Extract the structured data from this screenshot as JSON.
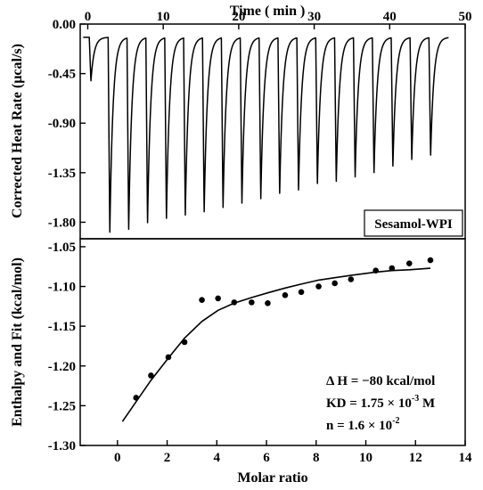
{
  "chart_data": [
    {
      "type": "line",
      "name": "raw-thermogram",
      "xlabel": "Time ( min )",
      "ylabel": "Corrected Heat Rate (µcal/s)",
      "xlim": [
        -1,
        50
      ],
      "ylim": [
        -1.95,
        0.0
      ],
      "x_ticks": [
        0,
        10,
        20,
        30,
        40,
        50
      ],
      "x_tick_labels": [
        "0",
        "10",
        "20",
        "30",
        "40",
        "50"
      ],
      "y_ticks": [
        0.0,
        -0.45,
        -0.9,
        -1.35,
        -1.8
      ],
      "y_tick_labels": [
        "0.00",
        "-0.45",
        "-0.90",
        "-1.35",
        "-1.80"
      ],
      "baseline": -0.12,
      "legend_label": "Sesamol-WPI",
      "legend_position": "bottom-right",
      "injection_times": [
        0.2,
        2.7,
        5.2,
        7.7,
        10.2,
        12.7,
        15.2,
        17.7,
        20.2,
        22.7,
        25.2,
        27.7,
        30.2,
        32.7,
        35.2,
        37.7,
        40.2,
        42.7,
        45.2
      ],
      "peak_minima": [
        -0.52,
        -1.91,
        -1.88,
        -1.82,
        -1.78,
        -1.75,
        -1.72,
        -1.68,
        -1.64,
        -1.6,
        -1.55,
        -1.52,
        -1.46,
        -1.44,
        -1.4,
        -1.36,
        -1.3,
        -1.24,
        -1.2
      ]
    },
    {
      "type": "scatter",
      "name": "integrated-isotherm",
      "xlabel": "Molar ratio",
      "ylabel": "Enthalpy and Fit (kcal/mol)",
      "xlim": [
        -1.5,
        14
      ],
      "ylim": [
        -1.3,
        -1.04
      ],
      "x_ticks": [
        0,
        2,
        4,
        6,
        8,
        10,
        12,
        14
      ],
      "x_tick_labels": [
        "0",
        "2",
        "4",
        "6",
        "8",
        "10",
        "12",
        "14"
      ],
      "y_ticks": [
        -1.05,
        -1.1,
        -1.15,
        -1.2,
        -1.25,
        -1.3
      ],
      "y_tick_labels": [
        "-1.05",
        "-1.10",
        "-1.15",
        "-1.20",
        "-1.25",
        "-1.30"
      ],
      "points": {
        "x": [
          0.75,
          1.35,
          2.05,
          2.7,
          3.4,
          4.05,
          4.7,
          5.4,
          6.05,
          6.75,
          7.4,
          8.1,
          8.75,
          9.4,
          10.4,
          11.05,
          11.75,
          12.6
        ],
        "y": [
          -1.24,
          -1.212,
          -1.189,
          -1.17,
          -1.117,
          -1.115,
          -1.12,
          -1.12,
          -1.121,
          -1.111,
          -1.107,
          -1.1,
          -1.096,
          -1.091,
          -1.08,
          -1.077,
          -1.071,
          -1.067
        ]
      },
      "fit": {
        "x": [
          0.2,
          0.75,
          1.35,
          2.05,
          2.7,
          3.4,
          4.05,
          4.7,
          5.4,
          6.05,
          6.75,
          7.4,
          8.1,
          8.75,
          9.4,
          10.4,
          11.05,
          11.75,
          12.6
        ],
        "y": [
          -1.27,
          -1.245,
          -1.218,
          -1.19,
          -1.165,
          -1.144,
          -1.13,
          -1.121,
          -1.114,
          -1.108,
          -1.102,
          -1.097,
          -1.092,
          -1.089,
          -1.086,
          -1.082,
          -1.08,
          -1.079,
          -1.077
        ]
      },
      "annotations": [
        "Δ H = −80 kcal/mol",
        "KD = 1.75 × 10",
        "-3",
        " M",
        "n = 1.6 × 10",
        "-2"
      ]
    }
  ]
}
